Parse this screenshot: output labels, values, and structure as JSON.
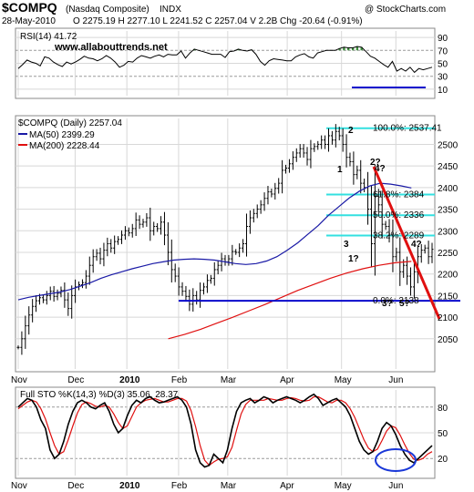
{
  "header": {
    "symbol": "$COMPQ",
    "name": "(Nasdaq Composite)",
    "exchange": "INDX",
    "watermark": "@ StockCharts.com",
    "date": "28-May-2010",
    "ohlc": "O 2275.19  H 2277.10  L 2241.52  C 2257.04  V 2.2B  Chg -20.64 (-0.91%)"
  },
  "rsi": {
    "label": "RSI(14) 41.72",
    "site": "www.allabouttrends.net",
    "ylim": [
      0,
      100
    ],
    "ticks": [
      10,
      30,
      50,
      70,
      90
    ],
    "values": [
      42,
      48,
      55,
      52,
      50,
      46,
      60,
      58,
      52,
      48,
      45,
      52,
      49,
      52,
      56,
      61,
      58,
      57,
      54,
      57,
      62,
      58,
      52,
      44,
      47,
      53,
      52,
      58,
      62,
      60,
      58,
      61,
      63,
      60,
      64,
      63,
      63,
      69,
      58,
      66,
      72,
      70,
      68,
      66,
      64,
      64,
      64,
      59,
      68,
      69,
      72,
      70,
      69,
      71,
      64,
      53,
      47,
      54,
      57,
      56,
      55,
      54,
      54,
      60,
      63,
      65,
      60,
      58,
      66,
      68,
      70,
      70,
      70,
      73,
      75,
      74,
      74,
      76,
      75,
      68,
      61,
      58,
      53,
      48,
      44,
      53,
      38,
      42,
      38,
      44,
      36,
      42,
      40,
      42,
      44
    ]
  },
  "price": {
    "label": "$COMPQ (Daily) 2257.04",
    "ma50_label": "MA(50) 2399.29",
    "ma200_label": "MA(200) 2228.44",
    "ylim": [
      1980,
      2560
    ],
    "ticks": [
      2050,
      2100,
      2150,
      2200,
      2250,
      2300,
      2350,
      2400,
      2450,
      2500
    ],
    "closes": [
      2030,
      2050,
      2080,
      2105,
      2125,
      2138,
      2145,
      2140,
      2150,
      2160,
      2148,
      2155,
      2162,
      2140,
      2120,
      2150,
      2170,
      2175,
      2180,
      2195,
      2220,
      2240,
      2248,
      2235,
      2255,
      2270,
      2260,
      2275,
      2280,
      2290,
      2300,
      2295,
      2305,
      2325,
      2315,
      2320,
      2330,
      2300,
      2310,
      2305,
      2320,
      2290,
      2250,
      2210,
      2195,
      2170,
      2160,
      2148,
      2130,
      2150,
      2140,
      2162,
      2170,
      2185,
      2190,
      2210,
      2220,
      2235,
      2228,
      2235,
      2252,
      2250,
      2260,
      2270,
      2310,
      2330,
      2340,
      2350,
      2360,
      2375,
      2390,
      2385,
      2398,
      2410,
      2440,
      2445,
      2455,
      2470,
      2480,
      2490,
      2480,
      2465,
      2490,
      2495,
      2500,
      2510,
      2500,
      2520,
      2510,
      2530,
      2520,
      2500,
      2470,
      2460,
      2430,
      2440,
      2410,
      2400,
      2350,
      2270,
      2380,
      2360,
      2315,
      2310,
      2290,
      2240,
      2250,
      2205,
      2220,
      2195,
      2170,
      2205,
      2240,
      2255,
      2260,
      2240,
      2257
    ],
    "ma50": [
      2140,
      2146,
      2150,
      2154,
      2158,
      2164,
      2172,
      2180,
      2190,
      2198,
      2205,
      2212,
      2218,
      2224,
      2228,
      2232,
      2234,
      2235,
      2234,
      2232,
      2228,
      2224,
      2222,
      2224,
      2230,
      2240,
      2255,
      2272,
      2292,
      2312,
      2336,
      2356,
      2376,
      2392,
      2404,
      2410,
      2408,
      2404,
      2399
    ],
    "ma200": [
      2050,
      2060,
      2072,
      2086,
      2100,
      2115,
      2130,
      2146,
      2162,
      2176,
      2190,
      2202,
      2212,
      2220,
      2226,
      2229
    ],
    "fib_levels": [
      {
        "label": "100.0%: 2537.41",
        "value": 2537.41
      },
      {
        "label": "61.8%: 2384",
        "value": 2384
      },
      {
        "label": "50.0%: 2336",
        "value": 2336
      },
      {
        "label": "38.2%: 2289",
        "value": 2289
      },
      {
        "label": "0.0%: 2138",
        "value": 2138
      }
    ],
    "support_level": 2138,
    "wave_labels": [
      {
        "text": "1",
        "color": "#1b1bbd"
      },
      {
        "text": "2",
        "color": "#1b1bbd"
      },
      {
        "text": "3",
        "color": "#1b1bbd"
      },
      {
        "text": "4?",
        "color": "#1b1bbd"
      },
      {
        "text": "5?",
        "color": "#1b1bbd"
      },
      {
        "text": "1?",
        "color": "#cc1111"
      },
      {
        "text": "2?",
        "color": "#cc1111"
      },
      {
        "text": "3?",
        "color": "#cc1111"
      },
      {
        "text": "4?",
        "color": "#cc1111"
      }
    ]
  },
  "sto": {
    "label": "Full STO %K(14,3) %D(3) 35.06, 28.37",
    "ylim": [
      0,
      100
    ],
    "ticks": [
      20,
      50,
      80
    ],
    "k": [
      80,
      85,
      90,
      88,
      80,
      65,
      55,
      30,
      20,
      25,
      40,
      60,
      75,
      85,
      88,
      85,
      80,
      78,
      82,
      85,
      75,
      60,
      50,
      55,
      70,
      82,
      88,
      85,
      90,
      92,
      88,
      85,
      86,
      88,
      90,
      92,
      88,
      80,
      60,
      30,
      15,
      10,
      12,
      25,
      20,
      15,
      30,
      55,
      75,
      85,
      88,
      90,
      85,
      88,
      92,
      90,
      85,
      88,
      90,
      92,
      90,
      88,
      85,
      88,
      92,
      95,
      90,
      82,
      85,
      88,
      90,
      85,
      80,
      70,
      55,
      40,
      30,
      25,
      28,
      40,
      55,
      62,
      58,
      48,
      35,
      25,
      18,
      15,
      20,
      25,
      30,
      35
    ],
    "d": [
      78,
      82,
      86,
      88,
      86,
      78,
      66,
      50,
      35,
      25,
      28,
      42,
      58,
      73,
      83,
      86,
      84,
      81,
      80,
      82,
      80,
      72,
      62,
      55,
      58,
      69,
      80,
      85,
      88,
      89,
      90,
      88,
      86,
      86,
      88,
      90,
      90,
      87,
      76,
      57,
      35,
      18,
      12,
      16,
      19,
      20,
      22,
      33,
      53,
      72,
      83,
      88,
      88,
      88,
      88,
      90,
      89,
      88,
      88,
      90,
      91,
      90,
      88,
      87,
      88,
      92,
      92,
      89,
      86,
      85,
      88,
      88,
      85,
      78,
      68,
      55,
      42,
      32,
      28,
      31,
      41,
      52,
      58,
      56,
      47,
      36,
      26,
      19,
      18,
      20,
      25,
      28
    ]
  },
  "xaxis": {
    "labels": [
      "Nov",
      "Dec",
      "2010",
      "Feb",
      "Mar",
      "Apr",
      "May",
      "Jun"
    ],
    "positions": [
      0,
      22,
      42,
      62,
      81,
      104,
      125,
      146
    ]
  },
  "colors": {
    "price_bar": "#000000",
    "ma50": "#1a1aa6",
    "ma200": "#e01010",
    "fib": "#33e0e0",
    "support": "#0a0acc",
    "trendline": "#e01010",
    "rsi_fill": "#3c8c3c",
    "sto_k": "#000000",
    "sto_d": "#e01010",
    "circle": "#1a38d8"
  }
}
